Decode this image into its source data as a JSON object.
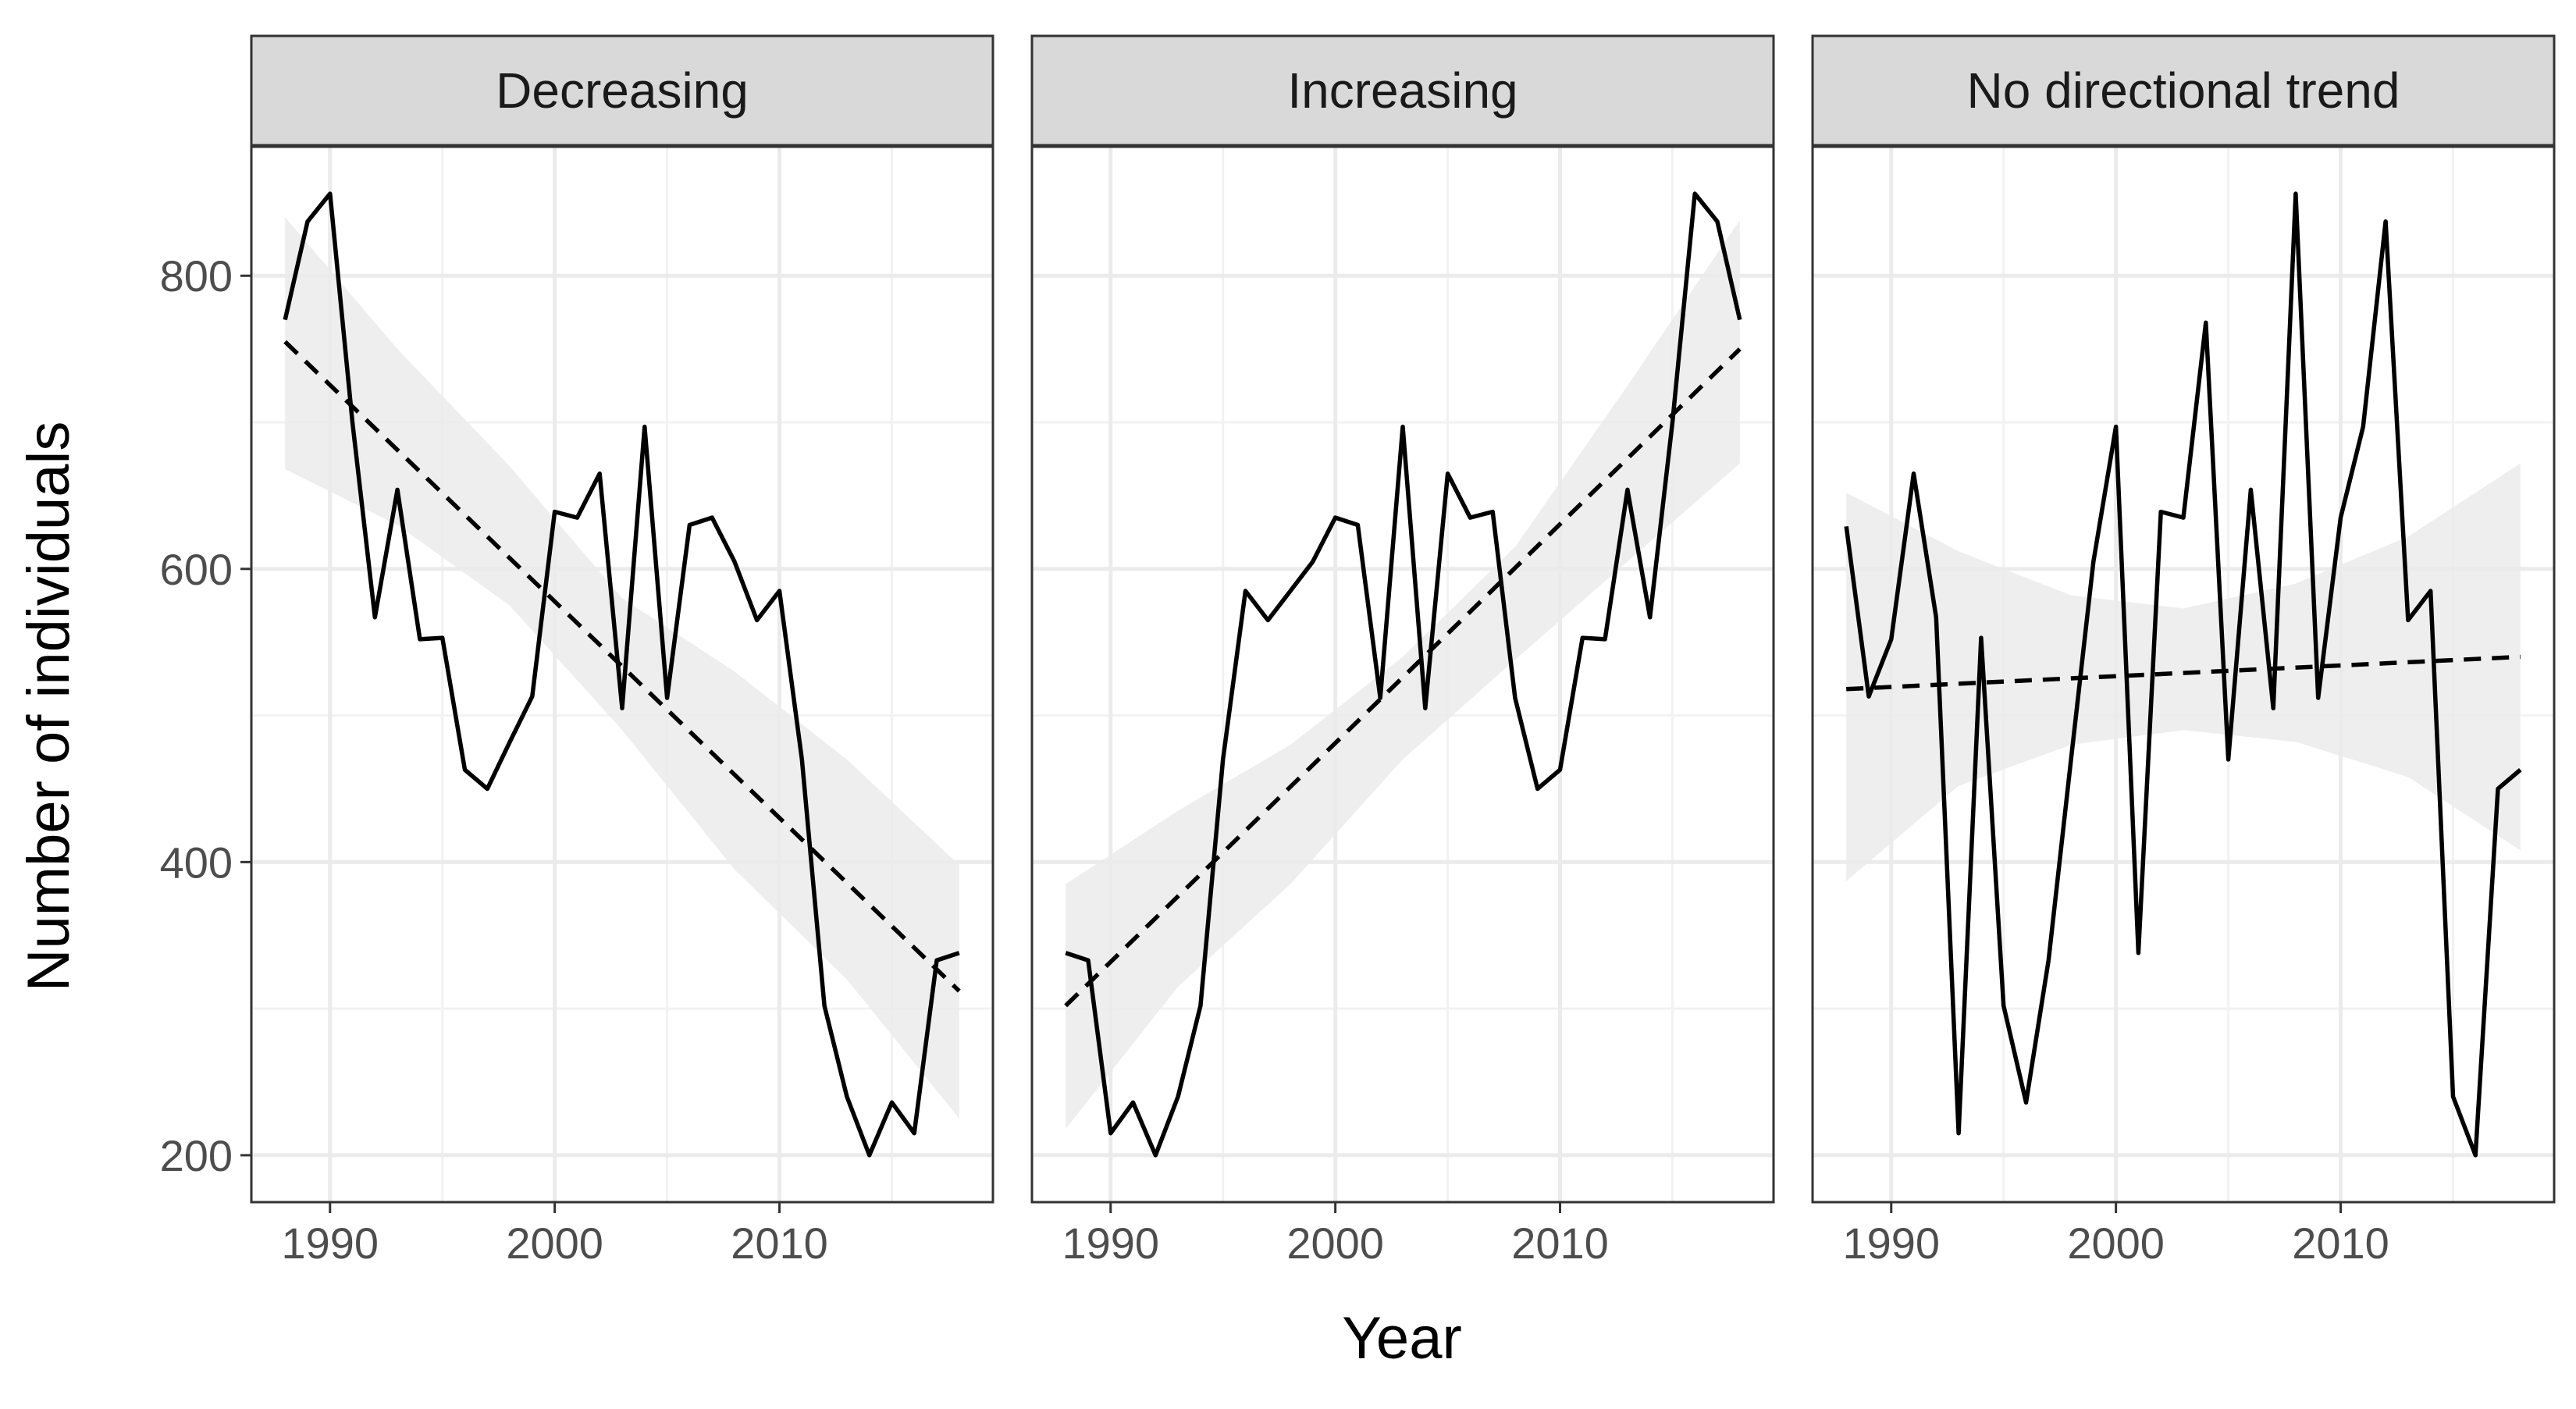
{
  "chart_data": {
    "type": "line",
    "xlabel": "Year",
    "ylabel": "Number of individuals",
    "xlim": [
      1986.5,
      2019.5
    ],
    "ylim": [
      168,
      888
    ],
    "x_ticks": [
      1990,
      2000,
      2010
    ],
    "x_tick_labels": [
      "1990",
      "2000",
      "2010"
    ],
    "y_ticks": [
      200,
      400,
      600,
      800
    ],
    "y_tick_labels": [
      "200",
      "400",
      "600",
      "800"
    ],
    "grid": true,
    "colors": {
      "line": "#000000",
      "trend": "#000000",
      "ribbon": "#ebebeb",
      "strip_fill": "#d9d9d9",
      "panel_border": "#333333",
      "grid_major": "#ebebeb",
      "grid_minor": "#f2f2f2"
    },
    "panels": [
      {
        "label": "Decreasing",
        "x": [
          1988,
          1989,
          1990,
          1991,
          1992,
          1993,
          1994,
          1995,
          1996,
          1997,
          1998,
          1999,
          2000,
          2001,
          2002,
          2003,
          2004,
          2005,
          2006,
          2007,
          2008,
          2009,
          2010,
          2011,
          2012,
          2013,
          2014,
          2015,
          2016,
          2017,
          2018
        ],
        "y": [
          770,
          837,
          856,
          700,
          567,
          654,
          552,
          553,
          463,
          450,
          482,
          513,
          639,
          635,
          665,
          505,
          697,
          512,
          630,
          635,
          605,
          565,
          585,
          470,
          302,
          240,
          200,
          236,
          215,
          333,
          338
        ],
        "trend": {
          "x": [
            1988,
            2018
          ],
          "y": [
            755,
            312
          ]
        },
        "ribbon": {
          "x": [
            1988,
            1993,
            1998,
            2003,
            2008,
            2013,
            2018
          ],
          "upper": [
            840,
            750,
            670,
            580,
            530,
            470,
            398
          ],
          "lower": [
            668,
            630,
            575,
            490,
            395,
            320,
            225
          ]
        }
      },
      {
        "label": "Increasing",
        "x": [
          1988,
          1989,
          1990,
          1991,
          1992,
          1993,
          1994,
          1995,
          1996,
          1997,
          1998,
          1999,
          2000,
          2001,
          2002,
          2003,
          2004,
          2005,
          2006,
          2007,
          2008,
          2009,
          2010,
          2011,
          2012,
          2013,
          2014,
          2015,
          2016,
          2017,
          2018
        ],
        "y": [
          338,
          333,
          215,
          236,
          200,
          240,
          302,
          470,
          585,
          565,
          585,
          605,
          635,
          630,
          512,
          697,
          505,
          665,
          635,
          639,
          512,
          450,
          463,
          553,
          552,
          654,
          567,
          700,
          856,
          837,
          770
        ],
        "trend": {
          "x": [
            1988,
            2018
          ],
          "y": [
            302,
            750
          ]
        },
        "ribbon": {
          "x": [
            1988,
            1993,
            1998,
            2003,
            2008,
            2013,
            2018
          ],
          "upper": [
            385,
            435,
            480,
            540,
            615,
            725,
            838
          ],
          "lower": [
            218,
            315,
            385,
            470,
            538,
            605,
            672
          ]
        }
      },
      {
        "label": "No directional trend",
        "x": [
          1988,
          1989,
          1990,
          1991,
          1992,
          1993,
          1994,
          1995,
          1996,
          1997,
          1998,
          1999,
          2000,
          2001,
          2002,
          2003,
          2004,
          2005,
          2006,
          2007,
          2008,
          2009,
          2010,
          2011,
          2012,
          2013,
          2014,
          2015,
          2016,
          2017,
          2018
        ],
        "y": [
          629,
          513,
          552,
          665,
          567,
          215,
          553,
          302,
          236,
          333,
          470,
          605,
          697,
          338,
          639,
          635,
          768,
          470,
          654,
          505,
          856,
          512,
          635,
          697,
          837,
          565,
          585,
          240,
          200,
          450,
          463
        ],
        "trend": {
          "x": [
            1988,
            2018
          ],
          "y": [
            518,
            540
          ]
        },
        "ribbon": {
          "x": [
            1988,
            1993,
            1998,
            2003,
            2008,
            2013,
            2018
          ],
          "upper": [
            652,
            612,
            582,
            573,
            590,
            622,
            672
          ],
          "lower": [
            387,
            452,
            480,
            490,
            482,
            458,
            408
          ]
        }
      }
    ]
  }
}
